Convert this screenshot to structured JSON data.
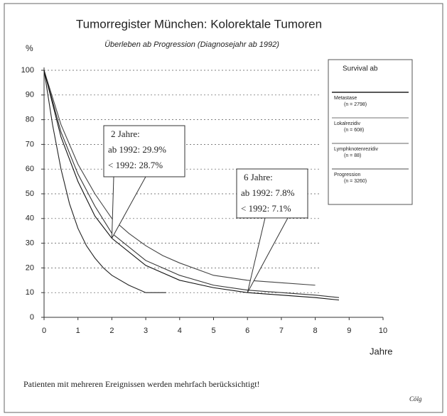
{
  "chart_data": {
    "type": "line",
    "title": "Tumorregister München: Kolorektale Tumoren",
    "subtitle": "Überleben ab Progression (Diagnosejahr ab 1992)",
    "y_label": "%",
    "x_label": "Jahre",
    "xlim": [
      0,
      10
    ],
    "xticks": [
      0,
      1,
      2,
      3,
      4,
      5,
      6,
      7,
      8,
      9,
      10
    ],
    "ylim": [
      0,
      100
    ],
    "yticks": [
      0,
      10,
      20,
      30,
      40,
      50,
      60,
      70,
      80,
      90,
      100
    ],
    "grid": true,
    "legend": {
      "title": "Survival ab"
    },
    "series": [
      {
        "name": "Metastase",
        "note": "(n = 2798)",
        "color": "#222222",
        "x": [
          0,
          0.25,
          0.5,
          0.75,
          1,
          1.25,
          1.5,
          1.75,
          2,
          2.5,
          3,
          3.6
        ],
        "values": [
          100,
          78,
          60,
          46,
          36,
          29,
          24,
          20,
          17,
          13,
          10,
          10
        ]
      },
      {
        "name": "Lokalrezidiv",
        "note": "(n = 608)",
        "color": "#444444",
        "x": [
          0,
          0.5,
          1,
          1.5,
          2,
          2.5,
          3,
          3.5,
          4,
          5,
          6,
          7,
          8
        ],
        "values": [
          100,
          78,
          62,
          50,
          40,
          34,
          29,
          25,
          22,
          17,
          15,
          14,
          13
        ]
      },
      {
        "name": "Lymphknotenrezidiv",
        "note": "(n = 88)",
        "color": "#333333",
        "x": [
          0,
          0.5,
          1,
          1.5,
          2,
          3,
          4,
          5,
          6,
          7,
          8,
          8.7
        ],
        "values": [
          100,
          75,
          58,
          45,
          34,
          23,
          17,
          13,
          11,
          10,
          9,
          8
        ]
      },
      {
        "name": "Progression",
        "note": "(n = 3260)",
        "color": "#111111",
        "x": [
          0,
          0.5,
          1,
          1.5,
          2,
          3,
          4,
          5,
          6,
          7,
          8,
          8.7
        ],
        "values": [
          100,
          73,
          55,
          41,
          32,
          21,
          15,
          12,
          10,
          9,
          8,
          7
        ]
      }
    ],
    "annotations": [
      {
        "lines": [
          "2 Jahre:",
          "ab 1992:  29.9%",
          "< 1992:  28.7%"
        ]
      },
      {
        "lines": [
          "6 Jahre:",
          "ab 1992:  7.8%",
          "< 1992:  7.1%"
        ]
      }
    ],
    "footnote": "Patienten mit mehreren Ereignissen werden mehrfach berücksichtigt!",
    "signature": "Cölg"
  }
}
